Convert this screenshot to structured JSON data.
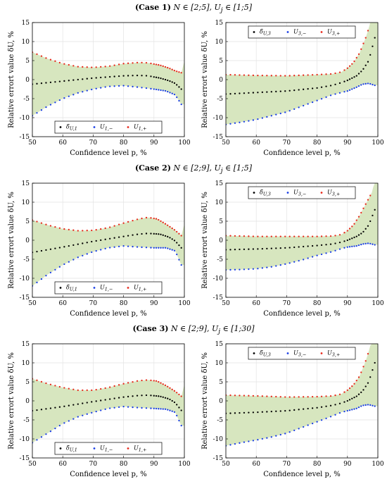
{
  "cases": [
    {
      "id": "case1",
      "label": "(Case 1)",
      "condition": "N ∈ [2;5], U",
      "condition2": "j",
      "condition3": " ∈ [1;5]"
    },
    {
      "id": "case2",
      "label": "(Case 2)",
      "condition": "N ∈ [2;9], U",
      "condition2": "j",
      "condition3": " ∈ [1;5]"
    },
    {
      "id": "case3",
      "label": "(Case 3)",
      "condition": "N ∈ [2;9], U",
      "condition2": "j",
      "condition3": " ∈ [1;30]"
    }
  ],
  "axis_text": {
    "xlabel": "Confidence level p, %",
    "ylabel": "Relative errort value δU, %"
  },
  "colors": {
    "band": "#d7e6bf",
    "mean": "#000000",
    "lower": "#1a3ee6",
    "upper": "#e8291c",
    "grid": "#e3e3e3"
  },
  "chart_data": [
    {
      "type": "scatter",
      "panel": "case1-left",
      "xlim": [
        50,
        100
      ],
      "ylim": [
        -15,
        15
      ],
      "xticks": [
        50,
        60,
        70,
        80,
        90,
        100
      ],
      "yticks": [
        -15,
        -10,
        -5,
        0,
        5,
        10,
        15
      ],
      "legend": [
        "δ̃U,1",
        "U1,−",
        "U1,+"
      ],
      "legend_position": "bottom-center",
      "series": [
        {
          "name": "δ̃U,1",
          "role": "mean",
          "knots": [
            [
              50,
              -1.2
            ],
            [
              60,
              -0.4
            ],
            [
              70,
              0.4
            ],
            [
              80,
              1.0
            ],
            [
              85,
              1.1
            ],
            [
              88,
              1.0
            ],
            [
              92,
              0.4
            ],
            [
              95,
              -0.3
            ],
            [
              97,
              -1.0
            ],
            [
              99,
              -2.5
            ]
          ]
        },
        {
          "name": "U1,−",
          "role": "lower",
          "knots": [
            [
              50,
              -9.5
            ],
            [
              55,
              -7.0
            ],
            [
              60,
              -5.0
            ],
            [
              65,
              -3.5
            ],
            [
              70,
              -2.5
            ],
            [
              75,
              -1.8
            ],
            [
              80,
              -1.6
            ],
            [
              85,
              -2.0
            ],
            [
              90,
              -2.5
            ],
            [
              94,
              -3.0
            ],
            [
              97,
              -4.0
            ],
            [
              99,
              -6.5
            ]
          ]
        },
        {
          "name": "U1,+",
          "role": "upper",
          "knots": [
            [
              50,
              7.2
            ],
            [
              55,
              5.5
            ],
            [
              60,
              4.2
            ],
            [
              65,
              3.4
            ],
            [
              70,
              3.2
            ],
            [
              75,
              3.5
            ],
            [
              80,
              4.2
            ],
            [
              85,
              4.5
            ],
            [
              88,
              4.4
            ],
            [
              92,
              3.8
            ],
            [
              95,
              3.0
            ],
            [
              97,
              2.3
            ],
            [
              99,
              1.8
            ]
          ]
        }
      ]
    },
    {
      "type": "scatter",
      "panel": "case1-right",
      "xlim": [
        50,
        100
      ],
      "ylim": [
        -15,
        15
      ],
      "xticks": [
        50,
        60,
        70,
        80,
        90,
        100
      ],
      "yticks": [
        -15,
        -10,
        -5,
        0,
        5,
        10,
        15
      ],
      "legend": [
        "δ̃U,3",
        "U3,−",
        "U3,+"
      ],
      "legend_position": "top-center",
      "series": [
        {
          "name": "δ̃U,3",
          "role": "mean",
          "knots": [
            [
              50,
              -3.8
            ],
            [
              60,
              -3.4
            ],
            [
              70,
              -3.0
            ],
            [
              80,
              -2.2
            ],
            [
              85,
              -1.5
            ],
            [
              88,
              -0.8
            ],
            [
              90,
              -0.2
            ],
            [
              93,
              1.0
            ],
            [
              95,
              2.5
            ],
            [
              97,
              5.0
            ],
            [
              99,
              11.0
            ]
          ]
        },
        {
          "name": "U3,−",
          "role": "lower",
          "knots": [
            [
              50,
              -11.8
            ],
            [
              55,
              -11.2
            ],
            [
              60,
              -10.5
            ],
            [
              65,
              -9.5
            ],
            [
              70,
              -8.5
            ],
            [
              75,
              -7.0
            ],
            [
              80,
              -5.5
            ],
            [
              85,
              -4.0
            ],
            [
              90,
              -3.0
            ],
            [
              93,
              -2.0
            ],
            [
              95,
              -1.2
            ],
            [
              97,
              -1.0
            ],
            [
              99,
              -1.5
            ]
          ]
        },
        {
          "name": "U3,+",
          "role": "upper",
          "knots": [
            [
              50,
              1.3
            ],
            [
              60,
              1.1
            ],
            [
              70,
              1.0
            ],
            [
              80,
              1.3
            ],
            [
              85,
              1.5
            ],
            [
              88,
              2.0
            ],
            [
              90,
              3.0
            ],
            [
              92,
              4.5
            ],
            [
              94,
              7.0
            ],
            [
              96,
              11.0
            ],
            [
              97,
              13.5
            ]
          ]
        }
      ]
    },
    {
      "type": "scatter",
      "panel": "case2-left",
      "xlim": [
        50,
        100
      ],
      "ylim": [
        -15,
        15
      ],
      "xticks": [
        50,
        60,
        70,
        80,
        90,
        100
      ],
      "yticks": [
        -15,
        -10,
        -5,
        0,
        5,
        10,
        15
      ],
      "legend": [
        "δ̃U,1",
        "U1,−",
        "U1,+"
      ],
      "legend_position": "bottom-center",
      "series": [
        {
          "name": "δ̃U,1",
          "role": "mean",
          "knots": [
            [
              50,
              -3.2
            ],
            [
              60,
              -1.8
            ],
            [
              70,
              -0.3
            ],
            [
              80,
              1.0
            ],
            [
              85,
              1.6
            ],
            [
              88,
              1.8
            ],
            [
              92,
              1.6
            ],
            [
              95,
              0.8
            ],
            [
              97,
              -0.2
            ],
            [
              99,
              -2.0
            ]
          ]
        },
        {
          "name": "U1,−",
          "role": "lower",
          "knots": [
            [
              50,
              -12.0
            ],
            [
              55,
              -9.0
            ],
            [
              60,
              -6.5
            ],
            [
              65,
              -4.5
            ],
            [
              70,
              -3.0
            ],
            [
              75,
              -2.0
            ],
            [
              80,
              -1.5
            ],
            [
              85,
              -1.8
            ],
            [
              90,
              -2.0
            ],
            [
              94,
              -2.0
            ],
            [
              97,
              -2.8
            ],
            [
              99,
              -6.5
            ]
          ]
        },
        {
          "name": "U1,+",
          "role": "upper",
          "knots": [
            [
              50,
              5.3
            ],
            [
              55,
              4.0
            ],
            [
              60,
              3.0
            ],
            [
              65,
              2.5
            ],
            [
              70,
              2.6
            ],
            [
              75,
              3.3
            ],
            [
              80,
              4.5
            ],
            [
              85,
              5.6
            ],
            [
              88,
              6.0
            ],
            [
              91,
              5.6
            ],
            [
              94,
              4.2
            ],
            [
              97,
              2.6
            ],
            [
              99,
              1.2
            ]
          ]
        }
      ]
    },
    {
      "type": "scatter",
      "panel": "case2-right",
      "xlim": [
        50,
        100
      ],
      "ylim": [
        -15,
        15
      ],
      "xticks": [
        50,
        60,
        70,
        80,
        90,
        100
      ],
      "yticks": [
        -15,
        -10,
        -5,
        0,
        5,
        10,
        15
      ],
      "legend": [
        "δ̃U,3",
        "U3,−",
        "U3,+"
      ],
      "legend_position": "top-center",
      "series": [
        {
          "name": "δ̃U,3",
          "role": "mean",
          "knots": [
            [
              50,
              -2.5
            ],
            [
              60,
              -2.3
            ],
            [
              70,
              -2.0
            ],
            [
              80,
              -1.4
            ],
            [
              85,
              -1.0
            ],
            [
              88,
              -0.5
            ],
            [
              90,
              0
            ],
            [
              93,
              1.0
            ],
            [
              95,
              2.0
            ],
            [
              97,
              4.0
            ],
            [
              99,
              8.0
            ]
          ]
        },
        {
          "name": "U3,−",
          "role": "lower",
          "knots": [
            [
              50,
              -7.8
            ],
            [
              55,
              -7.7
            ],
            [
              60,
              -7.5
            ],
            [
              65,
              -7.0
            ],
            [
              70,
              -6.2
            ],
            [
              75,
              -5.2
            ],
            [
              80,
              -4.0
            ],
            [
              85,
              -3.0
            ],
            [
              88,
              -2.2
            ],
            [
              90,
              -1.8
            ],
            [
              93,
              -1.5
            ],
            [
              95,
              -1.0
            ],
            [
              97,
              -0.8
            ],
            [
              99,
              -1.2
            ]
          ]
        },
        {
          "name": "U3,+",
          "role": "upper",
          "knots": [
            [
              50,
              1.2
            ],
            [
              60,
              1.0
            ],
            [
              70,
              1.0
            ],
            [
              80,
              1.0
            ],
            [
              85,
              1.1
            ],
            [
              88,
              1.5
            ],
            [
              90,
              2.5
            ],
            [
              92,
              4.0
            ],
            [
              94,
              6.5
            ],
            [
              96,
              9.5
            ],
            [
              98,
              12.5
            ]
          ]
        }
      ]
    },
    {
      "type": "scatter",
      "panel": "case3-left",
      "xlim": [
        50,
        100
      ],
      "ylim": [
        -15,
        15
      ],
      "xticks": [
        50,
        60,
        70,
        80,
        90,
        100
      ],
      "yticks": [
        -15,
        -10,
        -5,
        0,
        5,
        10,
        15
      ],
      "legend": [
        "δ̃U,1",
        "U1,−",
        "U1,+"
      ],
      "legend_position": "bottom-center",
      "series": [
        {
          "name": "δ̃U,1",
          "role": "mean",
          "knots": [
            [
              50,
              -2.6
            ],
            [
              60,
              -1.5
            ],
            [
              70,
              -0.2
            ],
            [
              80,
              1.0
            ],
            [
              85,
              1.4
            ],
            [
              88,
              1.5
            ],
            [
              92,
              1.2
            ],
            [
              95,
              0.5
            ],
            [
              97,
              -0.5
            ],
            [
              99,
              -2.5
            ]
          ]
        },
        {
          "name": "U1,−",
          "role": "lower",
          "knots": [
            [
              50,
              -11.0
            ],
            [
              55,
              -8.5
            ],
            [
              60,
              -6.0
            ],
            [
              65,
              -4.2
            ],
            [
              70,
              -3.0
            ],
            [
              75,
              -2.0
            ],
            [
              80,
              -1.5
            ],
            [
              85,
              -1.8
            ],
            [
              90,
              -2.0
            ],
            [
              94,
              -2.2
            ],
            [
              97,
              -3.0
            ],
            [
              99,
              -6.5
            ]
          ]
        },
        {
          "name": "U1,+",
          "role": "upper",
          "knots": [
            [
              50,
              5.8
            ],
            [
              55,
              4.5
            ],
            [
              60,
              3.5
            ],
            [
              65,
              2.8
            ],
            [
              70,
              2.8
            ],
            [
              75,
              3.5
            ],
            [
              80,
              4.5
            ],
            [
              85,
              5.3
            ],
            [
              88,
              5.5
            ],
            [
              91,
              5.2
            ],
            [
              94,
              4.0
            ],
            [
              97,
              2.5
            ],
            [
              99,
              1.2
            ]
          ]
        }
      ]
    },
    {
      "type": "scatter",
      "panel": "case3-right",
      "xlim": [
        50,
        100
      ],
      "ylim": [
        -15,
        15
      ],
      "xticks": [
        50,
        60,
        70,
        80,
        90,
        100
      ],
      "yticks": [
        -15,
        -10,
        -5,
        0,
        5,
        10,
        15
      ],
      "legend": [
        "δ̃U,3",
        "U3,−",
        "U3,+"
      ],
      "legend_position": "top-center",
      "series": [
        {
          "name": "δ̃U,3",
          "role": "mean",
          "knots": [
            [
              50,
              -3.3
            ],
            [
              60,
              -3.0
            ],
            [
              70,
              -2.6
            ],
            [
              80,
              -1.8
            ],
            [
              85,
              -1.2
            ],
            [
              88,
              -0.6
            ],
            [
              90,
              0
            ],
            [
              93,
              1.2
            ],
            [
              95,
              2.6
            ],
            [
              97,
              5.0
            ],
            [
              99,
              10.0
            ]
          ]
        },
        {
          "name": "U3,−",
          "role": "lower",
          "knots": [
            [
              50,
              -11.8
            ],
            [
              55,
              -11.0
            ],
            [
              60,
              -10.3
            ],
            [
              65,
              -9.5
            ],
            [
              70,
              -8.5
            ],
            [
              75,
              -7.0
            ],
            [
              80,
              -5.5
            ],
            [
              85,
              -4.0
            ],
            [
              88,
              -3.0
            ],
            [
              90,
              -2.6
            ],
            [
              93,
              -2.0
            ],
            [
              95,
              -1.2
            ],
            [
              97,
              -1.0
            ],
            [
              99,
              -1.4
            ]
          ]
        },
        {
          "name": "U3,+",
          "role": "upper",
          "knots": [
            [
              50,
              1.5
            ],
            [
              60,
              1.3
            ],
            [
              70,
              1.0
            ],
            [
              80,
              1.1
            ],
            [
              85,
              1.3
            ],
            [
              88,
              1.8
            ],
            [
              90,
              2.8
            ],
            [
              92,
              4.2
            ],
            [
              94,
              6.5
            ],
            [
              96,
              10.5
            ],
            [
              97,
              13.0
            ]
          ]
        }
      ]
    }
  ]
}
